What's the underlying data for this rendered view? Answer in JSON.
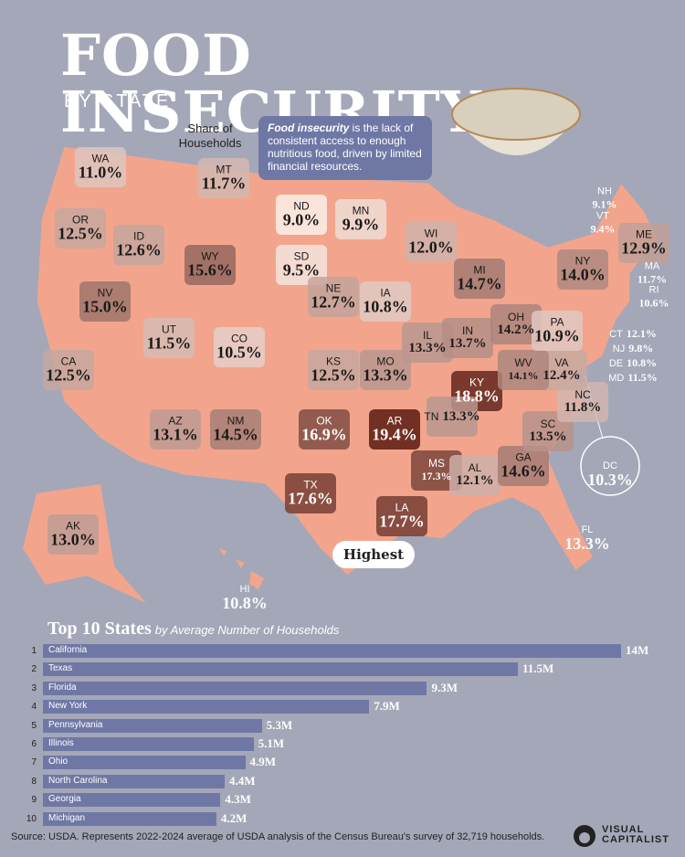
{
  "header": {
    "title": "FOOD INSECURITY",
    "subtitle": "BY STATE"
  },
  "annotation": {
    "share_label": "Share of Households",
    "highest_label": "Highest"
  },
  "infobox": {
    "term": "Food insecurity",
    "text": " is the lack of consistent access to enough nutritious food, driven by limited financial resources."
  },
  "colors": {
    "background": "#a4a7b8",
    "bar": "#6f78a5",
    "low": "#fdeee8",
    "high": "#5c1a10"
  },
  "states": [
    {
      "abbr": "WA",
      "value": "11.0%"
    },
    {
      "abbr": "OR",
      "value": "12.5%"
    },
    {
      "abbr": "CA",
      "value": "12.5%"
    },
    {
      "abbr": "NV",
      "value": "15.0%"
    },
    {
      "abbr": "ID",
      "value": "12.6%"
    },
    {
      "abbr": "MT",
      "value": "11.7%"
    },
    {
      "abbr": "WY",
      "value": "15.6%"
    },
    {
      "abbr": "UT",
      "value": "11.5%"
    },
    {
      "abbr": "CO",
      "value": "10.5%"
    },
    {
      "abbr": "AZ",
      "value": "13.1%"
    },
    {
      "abbr": "NM",
      "value": "14.5%"
    },
    {
      "abbr": "ND",
      "value": "9.0%"
    },
    {
      "abbr": "SD",
      "value": "9.5%"
    },
    {
      "abbr": "NE",
      "value": "12.7%"
    },
    {
      "abbr": "KS",
      "value": "12.5%"
    },
    {
      "abbr": "OK",
      "value": "16.9%"
    },
    {
      "abbr": "TX",
      "value": "17.6%"
    },
    {
      "abbr": "MN",
      "value": "9.9%"
    },
    {
      "abbr": "IA",
      "value": "10.8%"
    },
    {
      "abbr": "MO",
      "value": "13.3%"
    },
    {
      "abbr": "AR",
      "value": "19.4%"
    },
    {
      "abbr": "LA",
      "value": "17.7%"
    },
    {
      "abbr": "WI",
      "value": "12.0%"
    },
    {
      "abbr": "IL",
      "value": "13.3%"
    },
    {
      "abbr": "MI",
      "value": "14.7%"
    },
    {
      "abbr": "IN",
      "value": "13.7%"
    },
    {
      "abbr": "OH",
      "value": "14.2%"
    },
    {
      "abbr": "KY",
      "value": "18.8%"
    },
    {
      "abbr": "TN",
      "value": "13.3%"
    },
    {
      "abbr": "MS",
      "value": "17.3%"
    },
    {
      "abbr": "AL",
      "value": "12.1%"
    },
    {
      "abbr": "GA",
      "value": "14.6%"
    },
    {
      "abbr": "FL",
      "value": "13.3%"
    },
    {
      "abbr": "SC",
      "value": "13.5%"
    },
    {
      "abbr": "NC",
      "value": "11.8%"
    },
    {
      "abbr": "VA",
      "value": "12.4%"
    },
    {
      "abbr": "WV",
      "value": "14.1%"
    },
    {
      "abbr": "PA",
      "value": "10.9%"
    },
    {
      "abbr": "NY",
      "value": "14.0%"
    },
    {
      "abbr": "ME",
      "value": "12.9%"
    },
    {
      "abbr": "NH",
      "value": "9.1%"
    },
    {
      "abbr": "VT",
      "value": "9.4%"
    },
    {
      "abbr": "MA",
      "value": "11.7%"
    },
    {
      "abbr": "RI",
      "value": "10.6%"
    },
    {
      "abbr": "CT",
      "value": "12.1%"
    },
    {
      "abbr": "NJ",
      "value": "9.8%"
    },
    {
      "abbr": "DE",
      "value": "10.8%"
    },
    {
      "abbr": "MD",
      "value": "11.5%"
    },
    {
      "abbr": "DC",
      "value": "10.3%"
    },
    {
      "abbr": "AK",
      "value": "13.0%"
    },
    {
      "abbr": "HI",
      "value": "10.8%"
    }
  ],
  "chart_data": {
    "type": "bar",
    "title": "Top 10 States",
    "subtitle": "by Average Number of Households",
    "orientation": "horizontal",
    "ranks": [
      1,
      2,
      3,
      4,
      5,
      6,
      7,
      8,
      9,
      10
    ],
    "categories": [
      "California",
      "Texas",
      "Florida",
      "New York",
      "Pennsylvania",
      "Illinois",
      "Ohio",
      "North Carolina",
      "Georgia",
      "Michigan"
    ],
    "values": [
      14,
      11.5,
      9.3,
      7.9,
      5.3,
      5.1,
      4.9,
      4.4,
      4.3,
      4.2
    ],
    "labels": [
      "14M",
      "11.5M",
      "9.3M",
      "7.9M",
      "5.3M",
      "5.1M",
      "4.9M",
      "4.4M",
      "4.3M",
      "4.2M"
    ],
    "unit": "M"
  },
  "footer": {
    "source": "Source: USDA. Represents 2022-2024 average of USDA analysis of the Census Bureau's survey of 32,719 households.",
    "logo_line1": "VISUAL",
    "logo_line2": "CAPITALIST"
  }
}
